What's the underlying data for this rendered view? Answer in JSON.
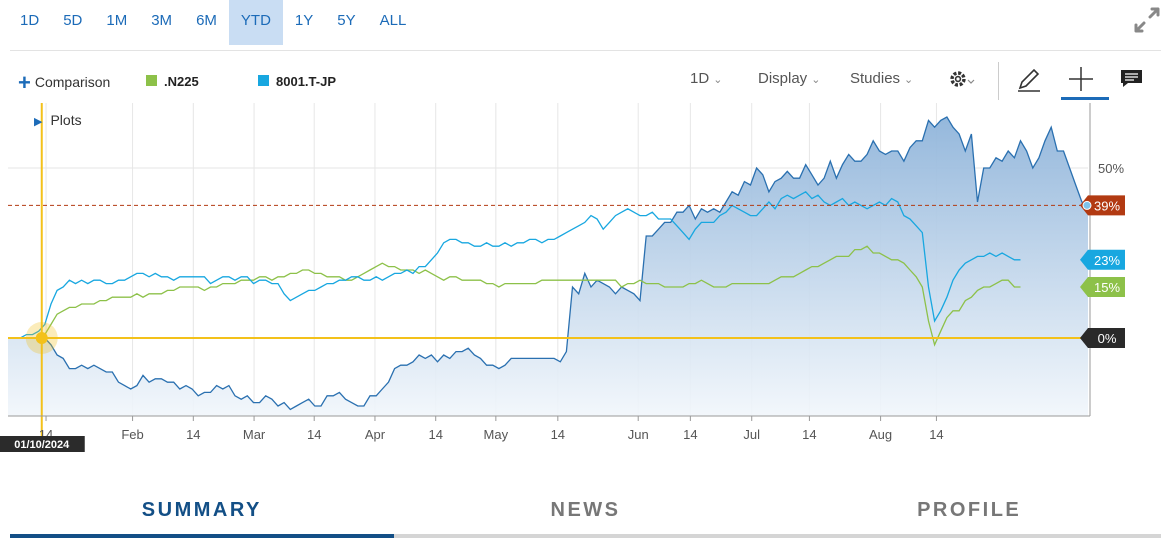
{
  "range_buttons": [
    "1D",
    "5D",
    "1M",
    "3M",
    "6M",
    "YTD",
    "1Y",
    "5Y",
    "ALL"
  ],
  "active_range": "YTD",
  "toolbar": {
    "comparison_label": "Comparison",
    "legend": [
      {
        "name": ".N225",
        "color": "#8dc149"
      },
      {
        "name": "8001.T-JP",
        "color": "#18a7e0"
      }
    ],
    "interval": "1D",
    "display": "Display",
    "studies": "Studies",
    "icons": [
      "gear-icon",
      "pencil-icon",
      "crosshair-icon",
      "comment-icon"
    ]
  },
  "plots_label": "Plots",
  "tabs": [
    "SUMMARY",
    "NEWS",
    "PROFILE"
  ],
  "active_tab": "SUMMARY",
  "colors": {
    "main_line": "#2a70b0",
    "main_fill_top": "#8fb4da",
    "main_fill_bottom": "#f1f6fb",
    "n225": "#8dc149",
    "comp": "#18a7e0",
    "crosshair": "#f3c11a",
    "last_price": "#b23a12"
  },
  "chart_data": {
    "type": "line",
    "y_unit": "%",
    "ylim": [
      -25,
      68
    ],
    "y_ticks": [
      50
    ],
    "x_ticks": [
      "14",
      "Feb",
      "14",
      "Mar",
      "14",
      "Apr",
      "14",
      "May",
      "14",
      "Jun",
      "14",
      "Jul",
      "14",
      "Aug",
      "14"
    ],
    "x_tick_index": [
      6.2,
      20.3,
      30.2,
      40.1,
      49.9,
      59.8,
      69.7,
      79.5,
      89.6,
      102.7,
      111.2,
      121.2,
      130.6,
      142.2,
      151.3
    ],
    "crosshair": {
      "date": "01/10/2024",
      "index": 5.5,
      "value": 0
    },
    "last_price_line": 39,
    "series": [
      {
        "name": "",
        "role": "main",
        "values": [
          0,
          0,
          0,
          0,
          0,
          0,
          0,
          -2,
          -5,
          -6,
          -9,
          -9,
          -8,
          -9,
          -8,
          -9,
          -10,
          -10,
          -13,
          -14,
          -15,
          -14,
          -11,
          -13,
          -12,
          -12,
          -13,
          -13,
          -15,
          -14,
          -15,
          -17,
          -16,
          -16,
          -14,
          -15,
          -14,
          -17,
          -18,
          -17,
          -19,
          -19,
          -17,
          -18,
          -20,
          -19,
          -21,
          -20,
          -19,
          -18,
          -20,
          -20,
          -17,
          -17,
          -16,
          -18,
          -19,
          -20,
          -20,
          -17,
          -17,
          -15,
          -13,
          -9,
          -8,
          -8,
          -7,
          -5,
          -6,
          -5,
          -7,
          -5,
          -6,
          -4,
          -4,
          -3,
          -5,
          -6,
          -8,
          -8,
          -9,
          -8,
          -6,
          -6,
          -6,
          -6,
          -6,
          -6,
          -6,
          -6,
          -7,
          -4,
          15,
          13,
          19,
          15,
          17,
          16,
          15,
          13,
          15,
          14,
          13,
          11,
          30,
          30,
          32,
          34,
          34,
          37,
          37,
          39,
          35,
          38,
          37,
          38,
          37,
          40,
          43,
          42,
          46,
          45,
          50,
          48,
          43,
          46,
          47,
          49,
          47,
          47,
          51,
          48,
          45,
          47,
          52,
          47,
          51,
          54,
          52,
          52,
          54,
          58,
          55,
          54,
          55,
          55,
          52,
          56,
          58,
          58,
          64,
          62,
          64,
          65,
          62,
          60,
          55,
          60,
          40,
          50,
          50,
          53,
          52,
          55,
          53,
          58,
          55,
          50,
          53,
          58,
          62,
          55,
          55,
          50,
          45,
          40,
          39
        ]
      },
      {
        "name": ".N225",
        "role": "n225",
        "values": [
          0,
          0,
          0,
          0,
          0,
          0,
          1,
          4,
          7,
          8,
          9,
          9,
          10,
          10,
          10,
          11,
          11,
          12,
          12,
          12,
          12,
          13,
          12,
          13,
          13,
          13,
          14,
          14,
          15,
          15,
          15,
          15,
          14,
          15,
          15,
          16,
          16,
          16,
          17,
          17,
          17,
          18,
          18,
          17,
          18,
          18,
          19,
          19,
          20,
          20,
          19,
          19,
          18,
          18,
          18,
          17,
          17,
          18,
          19,
          20,
          21,
          22,
          21,
          21,
          20,
          20,
          20,
          19,
          20,
          19,
          18,
          17,
          18,
          18,
          17,
          17,
          17,
          17,
          16,
          16,
          15,
          16,
          16,
          16,
          16,
          16,
          16,
          17,
          17,
          17,
          17,
          17,
          17,
          17,
          17,
          17,
          17,
          17,
          17,
          17,
          15,
          16,
          16,
          17,
          16,
          16,
          16,
          15,
          15,
          15,
          15,
          16,
          16,
          17,
          16,
          15,
          15,
          15,
          16,
          16,
          16,
          16,
          16,
          16,
          16,
          17,
          18,
          18,
          18,
          19,
          20,
          21,
          21,
          22,
          23,
          24,
          24,
          24,
          26,
          26,
          27,
          25,
          25,
          24,
          23,
          23,
          22,
          20,
          18,
          15,
          5,
          -2,
          2,
          6,
          8,
          8,
          11,
          12,
          14,
          15,
          15,
          16,
          17,
          17,
          15,
          15
        ]
      },
      {
        "name": "8001.T-JP",
        "role": "comp",
        "values": [
          0,
          0,
          0,
          1,
          1,
          2,
          4,
          10,
          14,
          15,
          17,
          16,
          17,
          16,
          17,
          17,
          16,
          16,
          17,
          17,
          18,
          19,
          19,
          18,
          19,
          18,
          18,
          17,
          18,
          18,
          18,
          18,
          18,
          16,
          17,
          18,
          18,
          17,
          18,
          18,
          16,
          17,
          17,
          16,
          16,
          13,
          11,
          12,
          13,
          14,
          14,
          15,
          16,
          16,
          17,
          17,
          18,
          18,
          17,
          17,
          18,
          17,
          18,
          19,
          19,
          20,
          19,
          21,
          21,
          23,
          25,
          28,
          29,
          29,
          28,
          28,
          27,
          27,
          28,
          27,
          27,
          28,
          27,
          28,
          28,
          29,
          29,
          28,
          29,
          29,
          30,
          31,
          32,
          33,
          34,
          36,
          35,
          32,
          34,
          36,
          37,
          38,
          37,
          36,
          36,
          37,
          35,
          35,
          35,
          33,
          31,
          29,
          32,
          34,
          34,
          34,
          36,
          37,
          39,
          38,
          37,
          36,
          36,
          38,
          40,
          38,
          41,
          42,
          41,
          42,
          43,
          41,
          42,
          40,
          39,
          40,
          41,
          39,
          40,
          39,
          38,
          39,
          40,
          39,
          41,
          40,
          36,
          35,
          33,
          31,
          15,
          5,
          8,
          12,
          17,
          20,
          22,
          23,
          24,
          24,
          25,
          24,
          25,
          24,
          23,
          23
        ]
      }
    ],
    "value_labels": [
      "39%",
      "23%",
      "15%",
      "0%"
    ]
  }
}
